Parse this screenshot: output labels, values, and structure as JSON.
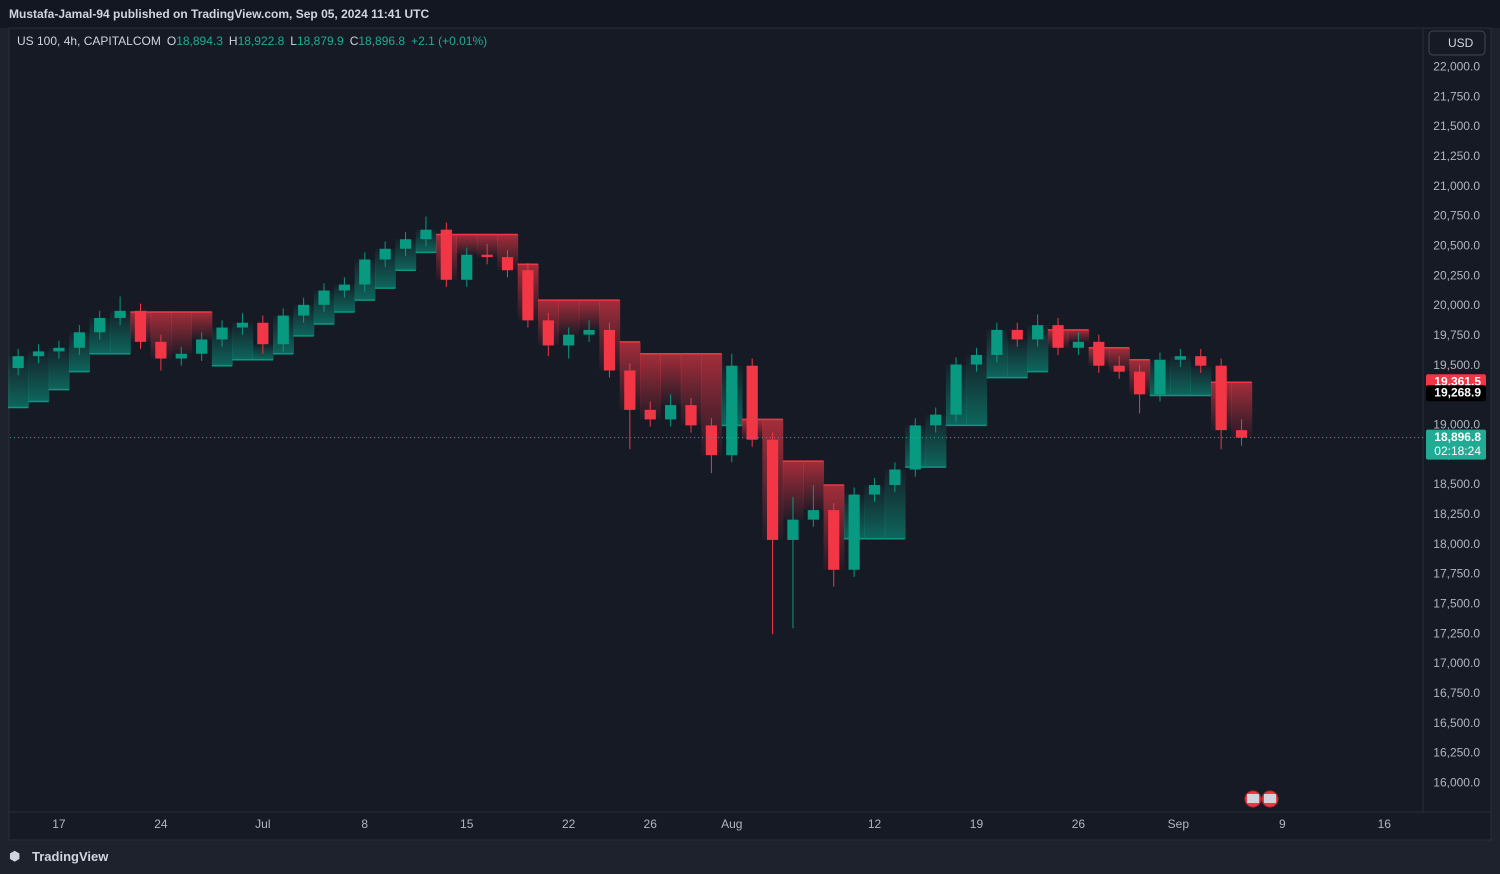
{
  "header": {
    "publisher": "Mustafa-Jamal-94 published on TradingView.com, Sep 05, 2024 11:41 UTC",
    "brand": "TradingView"
  },
  "chart_data": {
    "type": "candlestick",
    "title": "US 100, 4h, CAPITALCOM",
    "currency": "USD",
    "ohlc_legend": [
      {
        "label": "O",
        "value": "18,894.3"
      },
      {
        "label": "H",
        "value": "18,922.8"
      },
      {
        "label": "L",
        "value": "18,879.9"
      },
      {
        "label": "C",
        "value": "18,896.8"
      }
    ],
    "change": "+2.1 (+0.01%)",
    "up_color": "#089981",
    "down_color": "#f23645",
    "grid": false,
    "x": [
      -2,
      -1,
      0,
      1,
      2,
      3,
      4,
      5,
      6,
      7,
      8,
      9,
      10,
      11,
      12,
      13,
      14,
      15,
      16,
      17,
      18,
      19,
      20,
      21,
      22,
      23,
      24,
      25,
      26,
      27,
      28,
      29,
      30,
      31,
      32,
      33,
      34,
      35,
      36,
      37,
      38,
      39,
      40,
      41,
      42,
      43,
      44,
      45,
      46,
      47,
      48,
      49,
      50,
      51,
      52,
      53,
      54,
      55,
      56,
      57,
      58
    ],
    "open": [
      19480,
      19580,
      19620,
      19650,
      19780,
      19900,
      19960,
      19700,
      19560,
      19600,
      19720,
      19820,
      19860,
      19680,
      19920,
      20010,
      20130,
      20180,
      20390,
      20480,
      20560,
      20640,
      20220,
      20430,
      20410,
      20300,
      19880,
      19670,
      19760,
      19800,
      19460,
      19130,
      19050,
      19170,
      19000,
      18750,
      19500,
      18880,
      18040,
      18210,
      18290,
      17790,
      18420,
      18500,
      18630,
      19000,
      19090,
      19510,
      19590,
      19800,
      19720,
      19840,
      19650,
      19700,
      19500,
      19450,
      19260,
      19550,
      19580,
      19500,
      18960
    ],
    "high": [
      19640,
      19680,
      19710,
      19840,
      19960,
      20080,
      20020,
      19760,
      19660,
      19780,
      19880,
      19940,
      19920,
      19980,
      20070,
      20190,
      20240,
      20450,
      20540,
      20620,
      20750,
      20700,
      20490,
      20520,
      20470,
      20360,
      19940,
      19820,
      19880,
      19860,
      19520,
      19200,
      19260,
      19230,
      19060,
      19600,
      19560,
      18940,
      18400,
      18500,
      18350,
      18480,
      18560,
      18690,
      19060,
      19150,
      19570,
      19650,
      19860,
      19860,
      19930,
      19900,
      19780,
      19760,
      19580,
      19510,
      19610,
      19640,
      19640,
      19560,
      19050
    ],
    "low": [
      19420,
      19520,
      19560,
      19590,
      19720,
      19840,
      19640,
      19460,
      19500,
      19540,
      19660,
      19760,
      19600,
      19620,
      19860,
      19950,
      20070,
      20120,
      20330,
      20420,
      20500,
      20160,
      20160,
      20350,
      20240,
      19820,
      19580,
      19560,
      19700,
      19400,
      18800,
      18990,
      18990,
      18940,
      18600,
      18690,
      18820,
      17250,
      17300,
      18150,
      17650,
      17730,
      18360,
      18440,
      18570,
      18940,
      19030,
      19450,
      19530,
      19660,
      19660,
      19590,
      19590,
      19440,
      19390,
      19100,
      19200,
      19490,
      19440,
      18800,
      18830
    ],
    "close": [
      19580,
      19620,
      19650,
      19780,
      19900,
      19960,
      19700,
      19560,
      19600,
      19720,
      19820,
      19860,
      19680,
      19920,
      20010,
      20130,
      20180,
      20390,
      20480,
      20560,
      20640,
      20220,
      20430,
      20410,
      20300,
      19880,
      19670,
      19760,
      19800,
      19460,
      19130,
      19050,
      19170,
      19000,
      18750,
      19500,
      18880,
      18040,
      18210,
      18290,
      17790,
      18420,
      18500,
      18630,
      19000,
      19090,
      19510,
      19590,
      19800,
      19720,
      19840,
      19650,
      19700,
      19500,
      19450,
      19260,
      19550,
      19580,
      19500,
      18960,
      18896.8
    ],
    "trail": [
      19150,
      19200,
      19300,
      19450,
      19600,
      19600,
      19950,
      19950,
      19950,
      19950,
      19500,
      19550,
      19550,
      19600,
      19750,
      19850,
      19950,
      20050,
      20150,
      20300,
      20450,
      20600,
      20600,
      20600,
      20600,
      20350,
      20050,
      20050,
      20050,
      20050,
      19700,
      19600,
      19600,
      19600,
      19600,
      19000,
      19050,
      19050,
      18700,
      18700,
      18500,
      18050,
      18050,
      18050,
      18650,
      18650,
      19000,
      19000,
      19400,
      19400,
      19450,
      19800,
      19800,
      19650,
      19650,
      19550,
      19250,
      19250,
      19250,
      19361.5,
      19361.5
    ],
    "xlim": [
      -2.4,
      66.9
    ],
    "ylim": [
      15760,
      22330
    ],
    "xticks": [
      {
        "value": 0,
        "label": "17"
      },
      {
        "value": 5,
        "label": "24"
      },
      {
        "value": 10,
        "label": "Jul"
      },
      {
        "value": 15,
        "label": "8"
      },
      {
        "value": 20,
        "label": "15"
      },
      {
        "value": 25,
        "label": "22"
      },
      {
        "value": 29,
        "label": "26"
      },
      {
        "value": 33,
        "label": "Aug"
      },
      {
        "value": 40,
        "label": "12"
      },
      {
        "value": 45,
        "label": "19"
      },
      {
        "value": 50,
        "label": "26"
      },
      {
        "value": 54.9,
        "label": "Sep"
      },
      {
        "value": 60,
        "label": "9"
      },
      {
        "value": 65,
        "label": "16"
      }
    ],
    "yticks": [
      {
        "value": 16000,
        "label": "16,000.0"
      },
      {
        "value": 16250,
        "label": "16,250.0"
      },
      {
        "value": 16500,
        "label": "16,500.0"
      },
      {
        "value": 16750,
        "label": "16,750.0"
      },
      {
        "value": 17000,
        "label": "17,000.0"
      },
      {
        "value": 17250,
        "label": "17,250.0"
      },
      {
        "value": 17500,
        "label": "17,500.0"
      },
      {
        "value": 17750,
        "label": "17,750.0"
      },
      {
        "value": 18000,
        "label": "18,000.0"
      },
      {
        "value": 18250,
        "label": "18,250.0"
      },
      {
        "value": 18500,
        "label": "18,500.0"
      },
      {
        "value": 18750,
        "label": "18,750.0"
      },
      {
        "value": 19000,
        "label": "19,000.0"
      },
      {
        "value": 19250,
        "label": "19,250.0"
      },
      {
        "value": 19500,
        "label": "19,500.0"
      },
      {
        "value": 19750,
        "label": "19,750.0"
      },
      {
        "value": 20000,
        "label": "20,000.0"
      },
      {
        "value": 20250,
        "label": "20,250.0"
      },
      {
        "value": 20500,
        "label": "20,500.0"
      },
      {
        "value": 20750,
        "label": "20,750.0"
      },
      {
        "value": 21000,
        "label": "21,000.0"
      },
      {
        "value": 21250,
        "label": "21,250.0"
      },
      {
        "value": 21500,
        "label": "21,500.0"
      },
      {
        "value": 21750,
        "label": "21,750.0"
      },
      {
        "value": 22000,
        "label": "22,000.0"
      }
    ],
    "price_tags": [
      {
        "value": 19361.5,
        "label": "19,361.5",
        "color": "#f23645"
      },
      {
        "value": 19268.9,
        "label": "19,268.9",
        "color": "#000000"
      },
      {
        "value": 18896.8,
        "label": "18,896.8",
        "color": "#22ab94",
        "countdown": "02:18:24"
      }
    ]
  }
}
